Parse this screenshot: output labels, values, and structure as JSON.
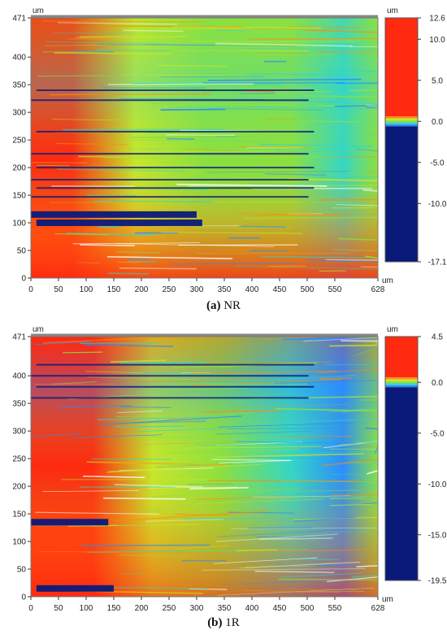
{
  "chart_data": [
    {
      "type": "heatmap",
      "caption_label": "(a)",
      "caption_text": " NR",
      "unit": "um",
      "colorbar_unit_bottom": "um",
      "x_unit": "um",
      "xlim": [
        0,
        628
      ],
      "ylim": [
        0,
        471
      ],
      "xticks": [
        "0",
        "50",
        "100",
        "150",
        "200",
        "250",
        "300",
        "350",
        "400",
        "450",
        "500",
        "550",
        "628"
      ],
      "yticks": [
        "0",
        "50",
        "100",
        "150",
        "200",
        "250",
        "300",
        "350",
        "400",
        "471"
      ],
      "colorbar_range": [
        -17.1,
        12.6
      ],
      "colorbar_ticks": [
        "12.6",
        "10.0",
        "5.0",
        "0.0",
        "-5.0",
        "-10.0",
        "-17.1"
      ],
      "colors": {
        "red": "#ff2a10",
        "orange": "#ff8a10",
        "yellow": "#c8e62a",
        "green": "#8be040",
        "cyan": "#33d6c8",
        "blue": "#2a8cff",
        "navy": "#0a1a7a"
      },
      "dark_grooves_y": [
        115,
        100,
        147,
        163,
        178,
        200,
        225,
        265,
        322,
        340
      ]
    },
    {
      "type": "heatmap",
      "caption_label": "(b)",
      "caption_text": " 1R",
      "unit": "um",
      "colorbar_unit_bottom": "um",
      "x_unit": "um",
      "xlim": [
        0,
        628
      ],
      "ylim": [
        0,
        471
      ],
      "xticks": [
        "0",
        "50",
        "100",
        "150",
        "200",
        "250",
        "300",
        "350",
        "400",
        "450",
        "500",
        "550",
        "628"
      ],
      "yticks": [
        "0",
        "50",
        "100",
        "150",
        "200",
        "250",
        "300",
        "350",
        "400",
        "471"
      ],
      "colorbar_range": [
        -19.5,
        4.5
      ],
      "colorbar_ticks": [
        "4.5",
        "0.0",
        "-5.0",
        "-10.0",
        "-15.0",
        "-19.5"
      ],
      "colors": {
        "red": "#ff2a10",
        "orange": "#ff8a10",
        "yellow": "#c8e62a",
        "green": "#8be040",
        "cyan": "#33d6c8",
        "blue": "#2a8cff",
        "navy": "#0a1a7a"
      },
      "dark_grooves_y": [
        135,
        15,
        360,
        380,
        400,
        420
      ]
    }
  ]
}
